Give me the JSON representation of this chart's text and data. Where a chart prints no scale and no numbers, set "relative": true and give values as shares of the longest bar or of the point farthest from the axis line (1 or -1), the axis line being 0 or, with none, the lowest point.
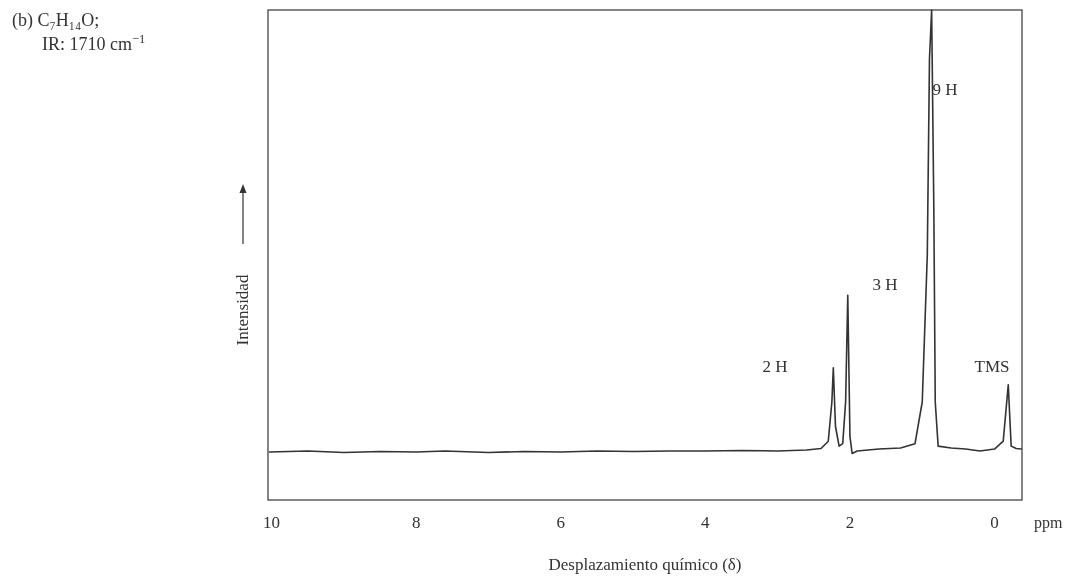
{
  "chart_data": {
    "type": "line",
    "title": "(b) C₇H₁₄O;",
    "subtitle": "IR: 1710 cm$^{−1}$",
    "xlabel": "Desplazamiento químico (δ)",
    "ylabel": "Intensidad",
    "relative": true,
    "xlim": [
      10.05,
      -0.38
    ],
    "xticks": [
      10,
      8,
      6,
      4,
      2,
      0
    ],
    "grid": false,
    "marker": "none",
    "line_style": "solid",
    "annotations": [
      "2 H",
      "3 H",
      "9 H",
      "TMS",
      "ppm"
    ],
    "series": [
      {
        "color": "#333333",
        "x": [
          10.03,
          9.5,
          9,
          8.5,
          8,
          7.6,
          7,
          6.5,
          6,
          5.5,
          5,
          4.5,
          4,
          3.5,
          3,
          2.6,
          2.4,
          2.3,
          2.25,
          2.23,
          2.2,
          2.15,
          2.1,
          2.06,
          2.03,
          2,
          1.97,
          1.9,
          1.6,
          1.3,
          1.1,
          1,
          0.93,
          0.9,
          0.87,
          0.84,
          0.82,
          0.78,
          0.6,
          0.4,
          0.2,
          0,
          -0.12,
          -0.19,
          -0.23,
          -0.3,
          -0.37
        ],
        "values": [
          0.098,
          0.1,
          0.097,
          0.099,
          0.098,
          0.1,
          0.097,
          0.099,
          0.098,
          0.1,
          0.099,
          0.1,
          0.1,
          0.101,
          0.1,
          0.102,
          0.105,
          0.12,
          0.2,
          0.27,
          0.15,
          0.11,
          0.115,
          0.2,
          0.418,
          0.13,
          0.095,
          0.1,
          0.104,
          0.106,
          0.115,
          0.2,
          0.5,
          0.9,
          1,
          0.6,
          0.2,
          0.11,
          0.106,
          0.104,
          0.1,
          0.104,
          0.12,
          0.235,
          0.11,
          0.105,
          0.104
        ]
      }
    ]
  }
}
